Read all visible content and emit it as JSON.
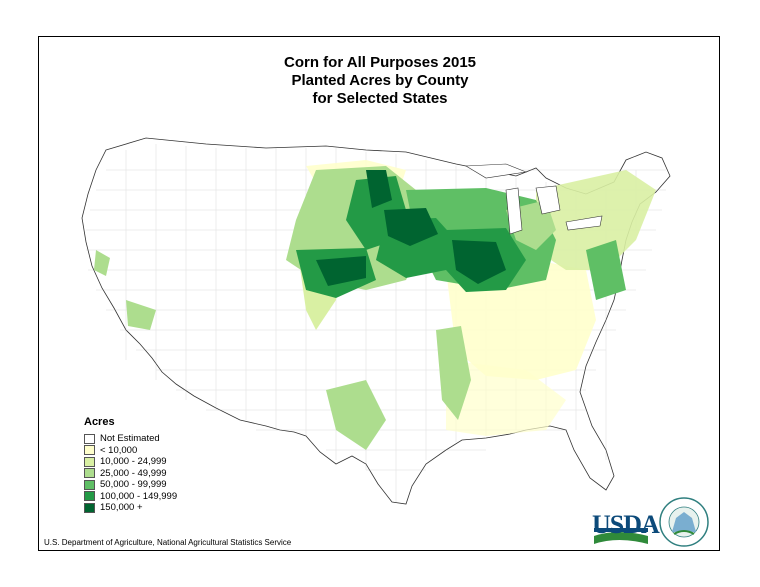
{
  "title": {
    "line1": "Corn for All Purposes 2015",
    "line2": "Planted Acres by County",
    "line3": "for Selected States"
  },
  "legend": {
    "title": "Acres",
    "items": [
      {
        "label": "Not Estimated",
        "color": "#ffffff"
      },
      {
        "label": "< 10,000",
        "color": "#ffffcc"
      },
      {
        "label": "10,000 - 24,999",
        "color": "#d9f0a3"
      },
      {
        "label": "25,000 - 49,999",
        "color": "#addd8e"
      },
      {
        "label": "50,000 - 99,999",
        "color": "#5fbf65"
      },
      {
        "label": "100,000 - 149,999",
        "color": "#239a46"
      },
      {
        "label": "150,000 +",
        "color": "#006430"
      }
    ]
  },
  "source": "U.S. Department of Agriculture, National Agricultural Statistics Service",
  "logo": {
    "text": "USDA",
    "ring_text": "AGRICULTURE COUNTS"
  }
}
